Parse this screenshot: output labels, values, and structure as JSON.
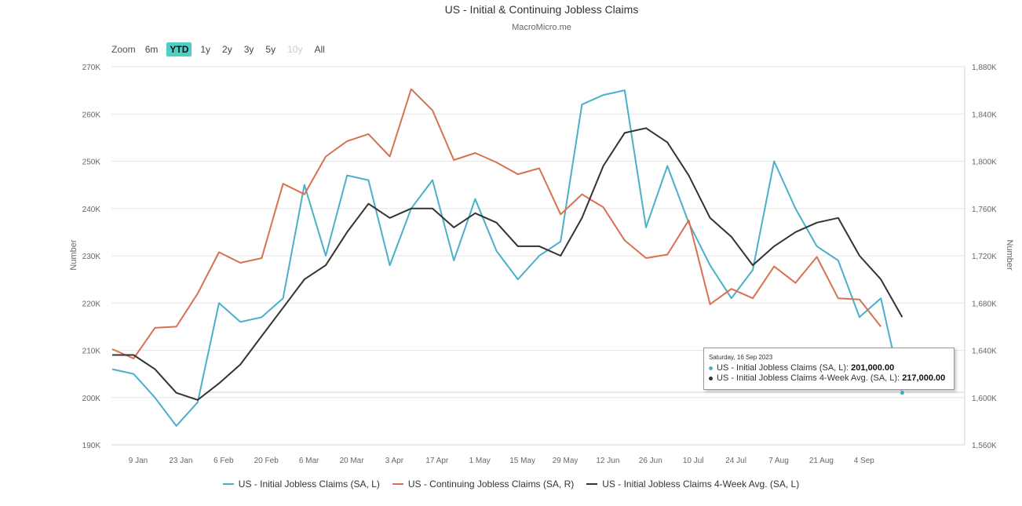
{
  "zoom": {
    "label": "Zoom",
    "buttons": [
      {
        "label": "6m",
        "state": "normal"
      },
      {
        "label": "YTD",
        "state": "active"
      },
      {
        "label": "1y",
        "state": "normal"
      },
      {
        "label": "2y",
        "state": "normal"
      },
      {
        "label": "3y",
        "state": "normal"
      },
      {
        "label": "5y",
        "state": "normal"
      },
      {
        "label": "10y",
        "state": "disabled"
      },
      {
        "label": "All",
        "state": "normal"
      }
    ]
  },
  "tooltip": {
    "date": "Saturday, 16 Sep 2023",
    "rows": [
      {
        "label": "US - Initial Jobless Claims (SA, L): ",
        "value": "201,000.00",
        "color": "#4ab0c8"
      },
      {
        "label": "US - Initial Jobless Claims 4-Week Avg. (SA, L): ",
        "value": "217,000.00",
        "color": "#333333"
      }
    ]
  },
  "chart_data": {
    "type": "line",
    "title": "US - Initial & Continuing Jobless Claims",
    "subtitle": "MacroMicro.me",
    "ylabel_left": "Number",
    "ylabel_right": "Number",
    "ylim_left": [
      190000,
      270000
    ],
    "ylim_right": [
      1560000,
      1880000
    ],
    "yticks_left": [
      "190K",
      "200K",
      "210K",
      "220K",
      "230K",
      "240K",
      "250K",
      "260K",
      "270K"
    ],
    "yticks_right": [
      "1,560K",
      "1,600K",
      "1,640K",
      "1,680K",
      "1,720K",
      "1,760K",
      "1,800K",
      "1,840K",
      "1,880K"
    ],
    "x_tick_labels": [
      "9 Jan",
      "23 Jan",
      "6 Feb",
      "20 Feb",
      "6 Mar",
      "20 Mar",
      "3 Apr",
      "17 Apr",
      "1 May",
      "15 May",
      "29 May",
      "12 Jun",
      "26 Jun",
      "10 Jul",
      "24 Jul",
      "7 Aug",
      "21 Aug",
      "4 Sep"
    ],
    "x_dates": [
      "31 Dec",
      "7 Jan",
      "14 Jan",
      "21 Jan",
      "28 Jan",
      "4 Feb",
      "11 Feb",
      "18 Feb",
      "25 Feb",
      "4 Mar",
      "11 Mar",
      "18 Mar",
      "25 Mar",
      "1 Apr",
      "8 Apr",
      "15 Apr",
      "22 Apr",
      "29 Apr",
      "6 May",
      "13 May",
      "20 May",
      "27 May",
      "3 Jun",
      "10 Jun",
      "17 Jun",
      "24 Jun",
      "1 Jul",
      "8 Jul",
      "15 Jul",
      "22 Jul",
      "29 Jul",
      "5 Aug",
      "12 Aug",
      "19 Aug",
      "26 Aug",
      "2 Sep",
      "9 Sep",
      "16 Sep"
    ],
    "series": [
      {
        "name": "US - Initial Jobless Claims (SA, L)",
        "axis": "left",
        "color": "#4ab0c8",
        "values": [
          206000,
          205000,
          200000,
          194000,
          199000,
          220000,
          216000,
          217000,
          221000,
          245000,
          230000,
          247000,
          246000,
          228000,
          240000,
          246000,
          229000,
          242000,
          231000,
          225000,
          230000,
          233000,
          262000,
          264000,
          265000,
          236000,
          249000,
          237000,
          228000,
          221000,
          227000,
          250000,
          240000,
          232000,
          229000,
          217000,
          221000,
          201000
        ]
      },
      {
        "name": "US - Continuing Jobless Claims (SA, R)",
        "axis": "right",
        "color": "#d9704f",
        "values": [
          1641000,
          1633000,
          1659000,
          1660000,
          1688000,
          1723000,
          1714000,
          1718000,
          1781000,
          1772000,
          1804000,
          1817000,
          1823000,
          1804000,
          1861000,
          1843000,
          1801000,
          1807000,
          1799000,
          1789000,
          1794000,
          1755000,
          1772000,
          1761000,
          1733000,
          1718000,
          1721000,
          1750000,
          1679000,
          1692000,
          1684000,
          1711000,
          1697000,
          1719000,
          1684000,
          1683000,
          1660000
        ]
      },
      {
        "name": "US - Initial Jobless Claims 4-Week Avg. (SA, L)",
        "axis": "left",
        "color": "#333333",
        "values": [
          209000,
          209000,
          206000,
          201000,
          199500,
          203000,
          207000,
          213000,
          219000,
          225000,
          228000,
          235000,
          241000,
          238000,
          240000,
          240000,
          236000,
          239000,
          237000,
          232000,
          232000,
          230000,
          238000,
          249000,
          256000,
          257000,
          254000,
          247000,
          238000,
          234000,
          228000,
          232000,
          235000,
          237000,
          238000,
          230000,
          225000,
          217000
        ]
      }
    ],
    "legend": [
      "US - Initial Jobless Claims (SA, L)",
      "US - Continuing Jobless Claims (SA, R)",
      "US - Initial Jobless Claims 4-Week Avg. (SA, L)"
    ],
    "legend_position": "bottom-center",
    "grid": true
  }
}
